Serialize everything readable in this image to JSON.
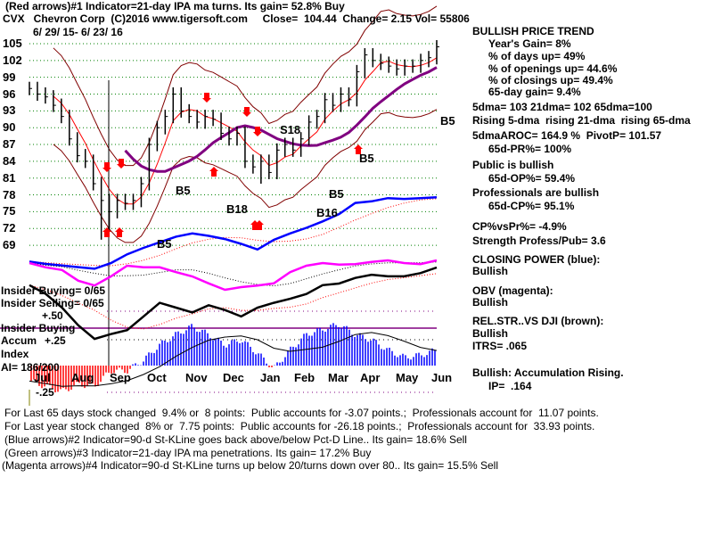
{
  "header": {
    "line1": "(Red arrows)#1 Indicator=21-day IPA ma turns. Its gain= 52.8% Buy",
    "line2": "CVX   Chevron Corp  (C)2016 www.tigersoft.com     Close=  104.44  Change= 2.15 Vol= 55806",
    "date_range": "6/ 29/ 15- 6/ 23/ 16"
  },
  "right_panel": {
    "trend": "BULLISH PRICE TREND",
    "years_gain": "Year's Gain= 8%",
    "days_up": "% of days up= 49%",
    "openings_up": "% of openings up= 44.6%",
    "closings_up": "% of closings up= 49.4%",
    "gain_65": "65-day gain= 9.4%",
    "dma": "5dma= 103 21dma= 102 65dma=100",
    "rising": "Rising 5-dma  rising 21-dma  rising 65-dma",
    "aroc": "5dmaAROC= 164.9 %  PivotP= 101.57",
    "pr": "65d-PR%= 100%",
    "public": "Public is bullish",
    "op": "65d-OP%= 59.4%",
    "pros": "Professionals are bullish",
    "cp": "65d-CP%= 95.1%",
    "cpvspr": "CP%vsPr%= -4.9%",
    "strength": "Strength Profess/Pub= 3.6",
    "cp_title": "CLOSING POWER (blue):",
    "cp_status": "Bullish",
    "obv_title": "OBV (magenta):",
    "obv_status": "Bullish",
    "rs_title": "REL.STR..VS DJI (brown):",
    "rs_status": "Bullish",
    "itrs": "ITRS= .065",
    "accum": "Bullish: Accumulation Rising.",
    "ip": "IP=  .164"
  },
  "left_labels": {
    "insider_buying": "Insider Buying= 0/65",
    "insider_selling": "Insider Selling= 0/65",
    "plus50": "+.50",
    "insider_buying2": "Insider Buying",
    "accum": "Accum",
    "plus25": "+.25",
    "index": "Index",
    "ai": "AI= 186/200",
    "minus25": "-.25"
  },
  "footer": {
    "line1": "For Last 65 days stock changed  9.4% or  8 points:  Public accounts for -3.07 points.;  Professionals account for  11.07 points.",
    "line2": "For Last year stock changed  8% or  7.75 points:  Public accounts for -26.18 points.;  Professionals account for  33.93 points.",
    "line3": "(Blue arrows)#2 Indicator=90-d St-KLine goes back above/below Pct-D Line.. Its gain= 18.6% Sell",
    "line4": "(Green arrows)#3 Indicator=21-day IPA ma penetrations. Its gain= 17.2% Buy",
    "line5": "(Magenta arrows)#4 Indicator=90-d St-KLine turns up below 20/turns down over 80.. Its gain= 15.5% Sell"
  },
  "annotations": [
    "B5",
    "B5",
    "B18",
    "S18",
    "B16",
    "B5",
    "B5",
    "B5"
  ],
  "chart_data": {
    "type": "line",
    "title": "CVX Chevron Corp 6/29/15 - 6/23/16",
    "ylim": [
      68,
      106
    ],
    "y_ticks": [
      "105",
      "102",
      "99",
      "96",
      "93",
      "90",
      "87",
      "84",
      "81",
      "78",
      "75",
      "72",
      "69"
    ],
    "x_ticks": [
      "Jul",
      "Aug",
      "Sep",
      "Oct",
      "Nov",
      "Dec",
      "Jan",
      "Feb",
      "Mar",
      "Apr",
      "May",
      "Jun"
    ],
    "weekly_close": [
      97,
      96,
      95.5,
      94,
      92,
      88,
      85,
      84,
      80,
      77,
      75,
      77,
      76.5,
      77,
      80,
      87,
      90,
      92,
      96,
      93,
      92,
      91,
      92,
      91.5,
      89,
      88,
      89,
      84,
      83,
      84,
      82,
      86,
      87,
      86,
      88,
      91,
      92,
      95,
      94,
      96,
      95,
      100,
      103,
      102,
      101.5,
      101,
      100.5,
      101,
      101,
      102,
      102.5,
      104.44
    ],
    "low_extremes": {
      "9": 70,
      "10": 71.5,
      "29": 80
    },
    "closing_power_index": [
      13,
      10,
      8,
      6,
      4,
      11,
      22,
      30,
      37,
      44,
      48,
      45,
      41,
      35,
      28,
      40,
      48,
      55,
      63,
      72,
      86,
      88,
      92,
      91,
      92,
      93
    ],
    "obv_index": [
      75,
      67,
      62,
      42,
      33,
      50,
      70,
      67,
      67,
      58,
      50,
      37,
      25,
      30,
      33,
      37,
      58,
      70,
      75,
      72,
      73,
      77,
      80,
      75,
      73,
      80
    ],
    "rel_strength_index": [
      78,
      67,
      50,
      28,
      11,
      17,
      22,
      39,
      56,
      50,
      44,
      53,
      47,
      39,
      50,
      56,
      61,
      67,
      78,
      80,
      87,
      91,
      89,
      89,
      93,
      100
    ],
    "accumulation_index": [
      -0.15,
      -0.2,
      -0.25,
      -0.18,
      -0.2,
      -0.05,
      -0.05,
      0.05,
      0.2,
      0.3,
      0.38,
      0.3,
      0.2,
      0.25,
      0.12,
      -0.03,
      0.15,
      0.3,
      0.35,
      0.4,
      0.3,
      0.25,
      0.15,
      0.08,
      0.1,
      0.15
    ],
    "colors": {
      "price": "#000000",
      "ma21": "#ff0000",
      "ma65": "#800080",
      "bands": "#800000",
      "closing_power": "#0000ff",
      "obv": "#ff00ff",
      "rs": "#000000",
      "accum_pos": "#0000ff",
      "accum_neg": "#ff0000",
      "grid": "#008000"
    }
  }
}
